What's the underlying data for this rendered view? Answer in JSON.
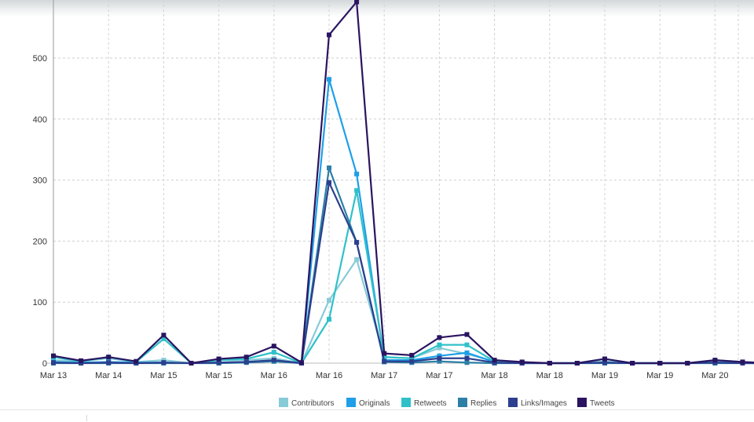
{
  "chart_data": {
    "type": "line",
    "title": "",
    "xlabel": "",
    "ylabel": "",
    "ylim": [
      0,
      600
    ],
    "yticks": [
      0,
      100,
      200,
      300,
      400,
      500
    ],
    "xtick_labels": [
      "Mar 13",
      "Mar 14",
      "Mar 15",
      "Mar 15",
      "Mar 16",
      "Mar 16",
      "Mar 17",
      "Mar 17",
      "Mar 18",
      "Mar 18",
      "Mar 19",
      "Mar 19",
      "Mar 20"
    ],
    "grid": true,
    "legend_position": "bottom",
    "x": [
      0,
      1,
      2,
      3,
      4,
      5,
      6,
      7,
      8,
      9,
      10,
      11,
      12,
      13,
      14,
      15,
      16,
      17,
      18,
      19,
      20,
      21,
      22,
      23,
      24,
      25,
      26,
      27
    ],
    "series": [
      {
        "name": "Contributors",
        "color": "#87cbd7",
        "values": [
          5,
          3,
          8,
          2,
          5,
          0,
          5,
          5,
          8,
          0,
          103,
          170,
          10,
          8,
          25,
          15,
          3,
          1,
          0,
          0,
          3,
          0,
          0,
          0,
          3,
          2,
          0,
          0
        ]
      },
      {
        "name": "Originals",
        "color": "#1e9fe8",
        "values": [
          2,
          1,
          2,
          1,
          1,
          0,
          1,
          2,
          3,
          0,
          465,
          310,
          5,
          5,
          12,
          17,
          2,
          1,
          0,
          0,
          1,
          0,
          0,
          0,
          1,
          1,
          0,
          0
        ]
      },
      {
        "name": "Retweets",
        "color": "#2fc1c9",
        "values": [
          10,
          3,
          10,
          2,
          40,
          0,
          5,
          7,
          18,
          0,
          72,
          283,
          10,
          8,
          30,
          30,
          3,
          1,
          0,
          0,
          7,
          0,
          0,
          0,
          5,
          2,
          0,
          0
        ]
      },
      {
        "name": "Replies",
        "color": "#2c7fa6",
        "values": [
          0,
          0,
          0,
          0,
          0,
          0,
          0,
          1,
          3,
          0,
          320,
          198,
          2,
          1,
          3,
          1,
          0,
          0,
          0,
          0,
          0,
          0,
          0,
          0,
          0,
          0,
          0,
          0
        ]
      },
      {
        "name": "Links/Images",
        "color": "#2c3f8e",
        "values": [
          1,
          0,
          1,
          0,
          1,
          0,
          1,
          2,
          5,
          0,
          296,
          198,
          3,
          3,
          8,
          8,
          1,
          0,
          0,
          0,
          1,
          0,
          0,
          0,
          1,
          0,
          0,
          0
        ]
      },
      {
        "name": "Tweets",
        "color": "#2a1460",
        "values": [
          12,
          4,
          10,
          3,
          46,
          0,
          7,
          10,
          28,
          1,
          538,
          592,
          16,
          13,
          42,
          47,
          5,
          2,
          0,
          0,
          7,
          0,
          0,
          0,
          5,
          2,
          0,
          0
        ]
      }
    ]
  }
}
